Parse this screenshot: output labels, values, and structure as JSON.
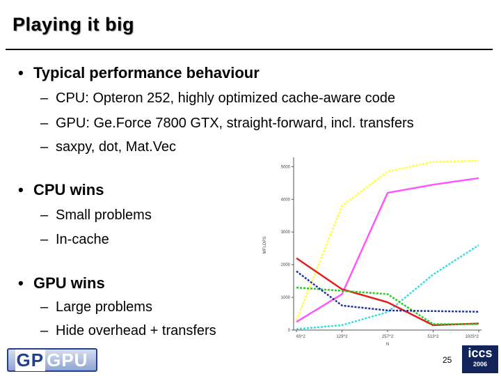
{
  "slide": {
    "title": "Playing it big",
    "bullets": [
      {
        "text": "Typical performance behaviour",
        "subs": [
          "CPU: Opteron 252, highly optimized cache-aware code",
          "GPU: Ge.Force 7800 GTX, straight-forward, incl. transfers",
          "saxpy, dot, Mat.Vec"
        ]
      },
      {
        "text": "CPU wins",
        "subs": [
          "Small problems",
          "In-cache"
        ]
      },
      {
        "text": "GPU wins",
        "subs": [
          "Large problems",
          "Hide overhead + transfers"
        ]
      }
    ],
    "bullet_char": "•",
    "dash_char": "–",
    "page_number": "25",
    "logo_left": {
      "part1": "GP",
      "part2": "GPU"
    },
    "logo_right": {
      "mark": "iccs",
      "year": "2006"
    }
  },
  "chart_data": {
    "type": "line",
    "ylabel": "MFLOPS",
    "xlabel": "N",
    "categories": [
      "65^2",
      "129^2",
      "257^2",
      "513^2",
      "1025^2"
    ],
    "yticks": [
      "0",
      "1000",
      "2000",
      "3000",
      "4000",
      "5000"
    ],
    "ylim": [
      0,
      5200
    ],
    "grid": false,
    "series": [
      {
        "color": "#ffff33",
        "dash": "3,2",
        "values": [
          300,
          3800,
          4850,
          5150,
          5180
        ]
      },
      {
        "color": "#ff55ff",
        "dash": "",
        "values": [
          250,
          1100,
          4200,
          4450,
          4650
        ]
      },
      {
        "color": "#33dddd",
        "dash": "3,2",
        "values": [
          30,
          150,
          550,
          1700,
          2600
        ]
      },
      {
        "color": "#e02020",
        "dash": "",
        "values": [
          2200,
          1250,
          850,
          150,
          200
        ]
      },
      {
        "color": "#22cc22",
        "dash": "3,2",
        "values": [
          1300,
          1200,
          1100,
          180,
          180
        ]
      },
      {
        "color": "#2030a0",
        "dash": "3,2",
        "values": [
          1800,
          750,
          600,
          580,
          560
        ]
      }
    ]
  }
}
